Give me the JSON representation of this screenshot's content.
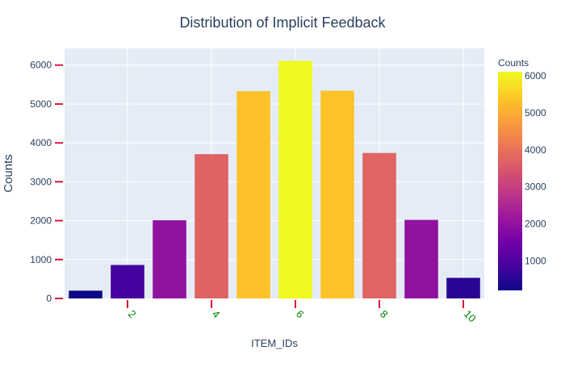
{
  "chart_data": {
    "type": "bar",
    "title": "Distribution of Implicit Feedback",
    "xlabel": "ITEM_IDs",
    "ylabel": "Counts",
    "x": [
      1,
      2,
      3,
      4,
      5,
      6,
      7,
      8,
      9,
      10
    ],
    "values": [
      200,
      860,
      2010,
      3710,
      5330,
      6110,
      5340,
      3740,
      2020,
      530
    ],
    "xlim": [
      0.5,
      10.5
    ],
    "ylim": [
      0,
      6430
    ],
    "xticks": [
      2,
      4,
      6,
      8,
      10
    ],
    "xtick_labels": [
      "2",
      "4",
      "6",
      "8",
      "10"
    ],
    "yticks": [
      0,
      1000,
      2000,
      3000,
      4000,
      5000,
      6000
    ],
    "ytick_labels": [
      "0",
      "1000",
      "2000",
      "3000",
      "4000",
      "5000",
      "6000"
    ],
    "xtick_label_rotation_deg": 45,
    "grid": true,
    "colorbar": {
      "title": "Counts",
      "range": [
        200,
        6110
      ],
      "ticks": [
        1000,
        2000,
        3000,
        4000,
        5000,
        6000
      ],
      "tick_labels": [
        "1000",
        "2000",
        "3000",
        "4000",
        "5000",
        "6000"
      ],
      "colorscale": [
        "#0d0887",
        "#46039f",
        "#7201a8",
        "#9c179e",
        "#bd3786",
        "#d8576b",
        "#ed7953",
        "#fb9f3a",
        "#fdca26",
        "#f0f921"
      ]
    },
    "colors": {
      "plot_background": "#e5ecf6",
      "grid": "#ffffff",
      "tick_marks": "#dc143c",
      "xtick_labels": "#008000",
      "text": "#2a3f5f"
    }
  }
}
